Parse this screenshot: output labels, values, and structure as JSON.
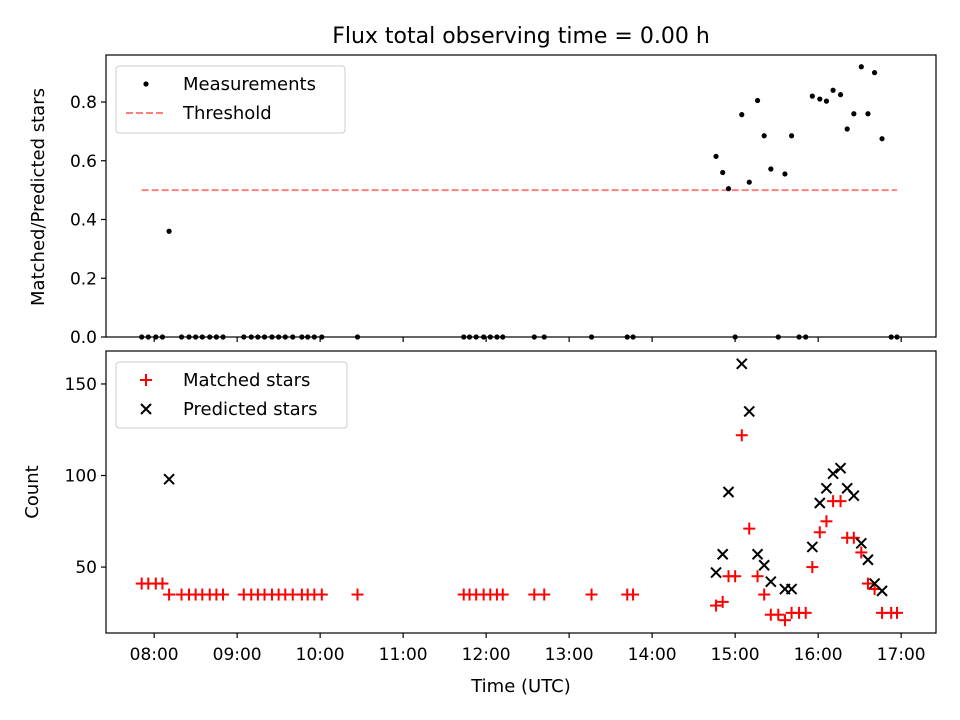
{
  "chart_data": [
    {
      "type": "scatter",
      "title": "Flux total observing time = 0.00 h",
      "xlabel": "",
      "ylabel": "Matched/Predicted stars",
      "xlim": [
        7.42,
        17.42
      ],
      "ylim": [
        0,
        0.96
      ],
      "yticks": [
        0.0,
        0.2,
        0.4,
        0.6,
        0.8
      ],
      "ytick_labels": [
        "0.0",
        "0.2",
        "0.4",
        "0.6",
        "0.8"
      ],
      "threshold": {
        "name": "Threshold",
        "value": 0.5,
        "x_range": [
          7.85,
          16.95
        ],
        "color": "#ff7f7f"
      },
      "legend": {
        "loc": "upper left",
        "entries": [
          "Measurements",
          "Threshold"
        ]
      },
      "series": [
        {
          "name": "Measurements",
          "color": "#000000",
          "x": [
            7.85,
            7.93,
            8.02,
            8.1,
            8.18,
            8.33,
            8.42,
            8.5,
            8.58,
            8.67,
            8.75,
            8.83,
            9.08,
            9.17,
            9.25,
            9.33,
            9.42,
            9.5,
            9.58,
            9.67,
            9.78,
            9.85,
            9.93,
            10.02,
            10.45,
            11.73,
            11.8,
            11.88,
            11.97,
            12.05,
            12.13,
            12.2,
            12.58,
            12.7,
            13.27,
            13.7,
            13.77,
            14.77,
            14.85,
            14.92,
            15.0,
            15.08,
            15.17,
            15.27,
            15.35,
            15.43,
            15.52,
            15.6,
            15.68,
            15.77,
            15.85,
            15.93,
            16.02,
            16.1,
            16.18,
            16.27,
            16.35,
            16.43,
            16.52,
            16.6,
            16.68,
            16.77,
            16.88,
            16.95
          ],
          "y": [
            0,
            0,
            0,
            0,
            0.36,
            0,
            0,
            0,
            0,
            0,
            0,
            0,
            0,
            0,
            0,
            0,
            0,
            0,
            0,
            0,
            0,
            0,
            0,
            0,
            0,
            0,
            0,
            0,
            0,
            0,
            0,
            0,
            0,
            0,
            0,
            0,
            0,
            0.615,
            0.56,
            0.505,
            0,
            0.757,
            0.527,
            0.805,
            0.685,
            0.572,
            0,
            0.555,
            0.685,
            0,
            0,
            0.82,
            0.81,
            0.803,
            0.84,
            0.825,
            0.708,
            0.76,
            0.92,
            0.76,
            0.9,
            0.675,
            0,
            0
          ]
        }
      ]
    },
    {
      "type": "scatter",
      "title": "",
      "xlabel": "Time (UTC)",
      "ylabel": "Count",
      "xlim": [
        7.42,
        17.42
      ],
      "ylim": [
        14,
        168
      ],
      "yticks": [
        50,
        100,
        150
      ],
      "ytick_labels": [
        "50",
        "100",
        "150"
      ],
      "xticks": [
        8,
        9,
        10,
        11,
        12,
        13,
        14,
        15,
        16,
        17
      ],
      "xtick_labels": [
        "08:00",
        "09:00",
        "10:00",
        "11:00",
        "12:00",
        "13:00",
        "14:00",
        "15:00",
        "16:00",
        "17:00"
      ],
      "legend": {
        "loc": "upper left",
        "entries": [
          "Matched stars",
          "Predicted stars"
        ]
      },
      "series": [
        {
          "name": "Matched stars",
          "marker": "+",
          "color": "#ff0000",
          "x": [
            7.85,
            7.93,
            8.02,
            8.1,
            8.18,
            8.33,
            8.42,
            8.5,
            8.58,
            8.67,
            8.75,
            8.83,
            9.08,
            9.17,
            9.25,
            9.33,
            9.42,
            9.5,
            9.58,
            9.67,
            9.78,
            9.85,
            9.93,
            10.02,
            10.45,
            11.73,
            11.8,
            11.88,
            11.97,
            12.05,
            12.13,
            12.2,
            12.58,
            12.7,
            13.27,
            13.7,
            13.77,
            14.77,
            14.85,
            14.92,
            15.0,
            15.08,
            15.17,
            15.27,
            15.35,
            15.43,
            15.52,
            15.6,
            15.68,
            15.77,
            15.85,
            15.93,
            16.02,
            16.1,
            16.18,
            16.27,
            16.35,
            16.43,
            16.52,
            16.6,
            16.68,
            16.77,
            16.88,
            16.95
          ],
          "y": [
            41,
            41,
            41,
            41,
            35,
            35,
            35,
            35,
            35,
            35,
            35,
            35,
            35,
            35,
            35,
            35,
            35,
            35,
            35,
            35,
            35,
            35,
            35,
            35,
            35,
            35,
            35,
            35,
            35,
            35,
            35,
            35,
            35,
            35,
            35,
            35,
            35,
            29,
            31,
            45,
            45,
            122,
            71,
            45,
            35,
            24,
            24,
            21,
            25,
            25,
            25,
            50,
            69,
            75,
            86,
            86,
            66,
            66,
            58,
            41,
            38,
            25,
            25,
            25
          ]
        },
        {
          "name": "Predicted stars",
          "marker": "x",
          "color": "#000000",
          "x": [
            8.18,
            14.77,
            14.85,
            14.92,
            15.08,
            15.17,
            15.27,
            15.35,
            15.43,
            15.6,
            15.68,
            15.93,
            16.02,
            16.1,
            16.18,
            16.27,
            16.35,
            16.43,
            16.52,
            16.6,
            16.68,
            16.77
          ],
          "y": [
            98,
            47,
            57,
            91,
            161,
            135,
            57,
            51,
            42,
            38,
            38,
            61,
            85,
            93,
            101,
            104,
            93,
            89,
            63,
            54,
            41,
            37
          ]
        }
      ]
    }
  ]
}
